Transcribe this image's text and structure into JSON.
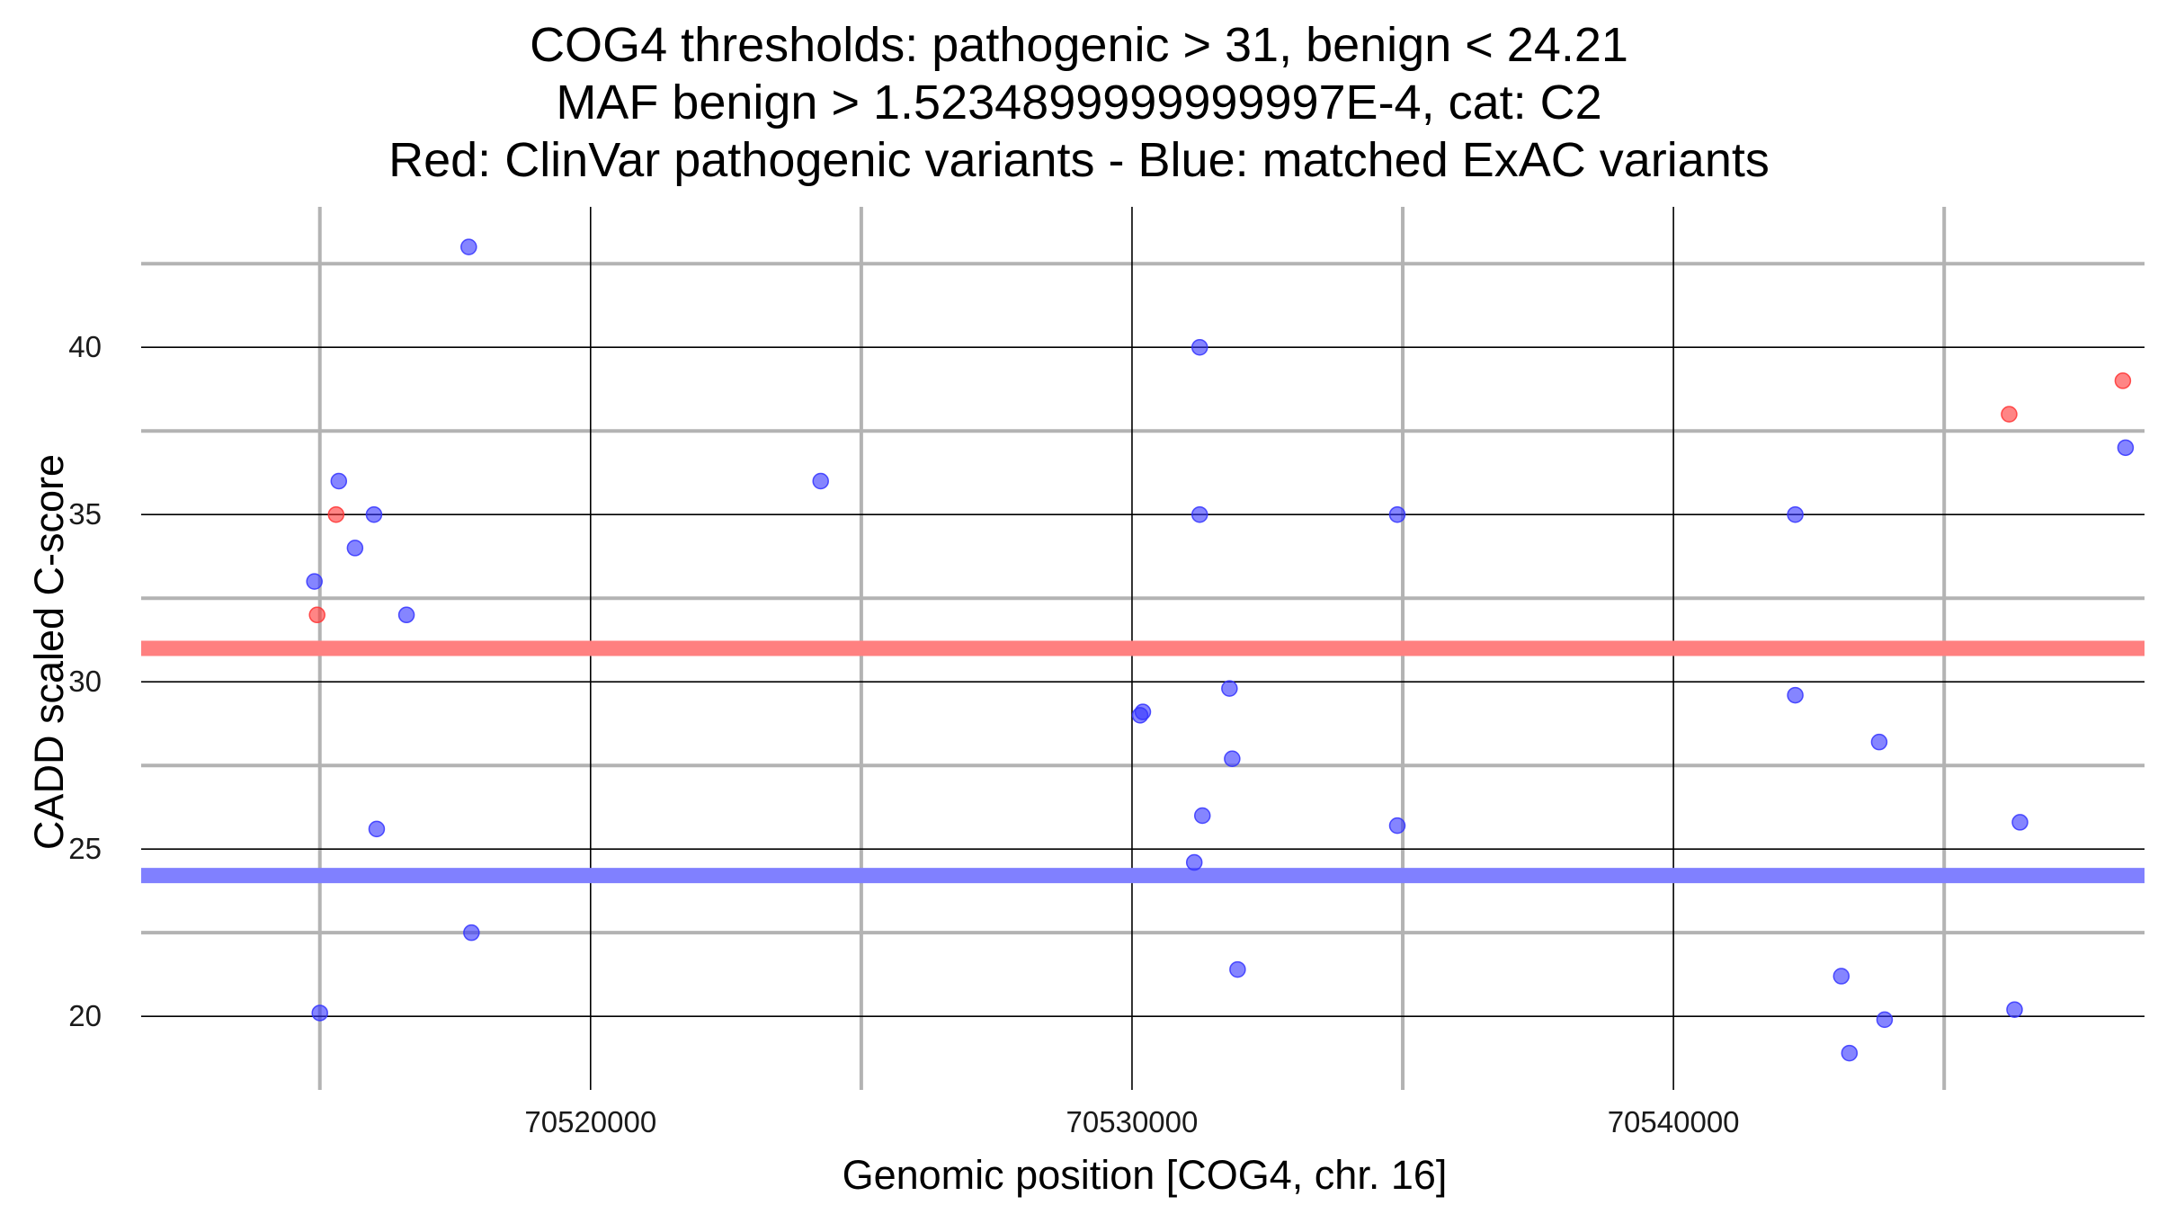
{
  "chart_data": {
    "type": "scatter",
    "title_lines": [
      "COG4 thresholds: pathogenic > 31, benign < 24.21",
      "MAF benign > 1.5234899999999997E-4, cat: C2",
      "Red: ClinVar pathogenic variants - Blue: matched ExAC variants"
    ],
    "xlabel": "Genomic position [COG4, chr. 16]",
    "ylabel": "CADD scaled C-score",
    "xlim": [
      70511700,
      70548700
    ],
    "ylim": [
      17.8,
      44.2
    ],
    "x_ticks": [
      70520000,
      70530000,
      70540000
    ],
    "x_tick_labels": [
      "70520000",
      "70530000",
      "70540000"
    ],
    "x_minor_ticks": [
      70515000,
      70525000,
      70535000,
      70545000
    ],
    "y_ticks": [
      20,
      25,
      30,
      35,
      40
    ],
    "y_tick_labels": [
      "20",
      "25",
      "30",
      "35",
      "40"
    ],
    "y_minor_ticks": [
      22.5,
      27.5,
      32.5,
      37.5,
      42.5
    ],
    "thresholds": [
      {
        "name": "pathogenic",
        "value": 31,
        "color": "#ff8080"
      },
      {
        "name": "benign",
        "value": 24.21,
        "color": "#8080ff"
      }
    ],
    "series": [
      {
        "name": "ClinVar pathogenic variants",
        "color": "#ff3333",
        "points": [
          {
            "x": 70514950,
            "y": 32
          },
          {
            "x": 70515300,
            "y": 35
          },
          {
            "x": 70546200,
            "y": 38
          },
          {
            "x": 70548300,
            "y": 39
          }
        ]
      },
      {
        "name": "matched ExAC variants",
        "color": "#3333ff",
        "points": [
          {
            "x": 70514900,
            "y": 33
          },
          {
            "x": 70515000,
            "y": 20.1
          },
          {
            "x": 70515350,
            "y": 36
          },
          {
            "x": 70515650,
            "y": 34
          },
          {
            "x": 70516000,
            "y": 35
          },
          {
            "x": 70516050,
            "y": 25.6
          },
          {
            "x": 70516600,
            "y": 32
          },
          {
            "x": 70517750,
            "y": 43
          },
          {
            "x": 70517800,
            "y": 22.5
          },
          {
            "x": 70524250,
            "y": 36
          },
          {
            "x": 70530150,
            "y": 29
          },
          {
            "x": 70530200,
            "y": 29.1
          },
          {
            "x": 70531150,
            "y": 24.6
          },
          {
            "x": 70531250,
            "y": 40
          },
          {
            "x": 70531250,
            "y": 35
          },
          {
            "x": 70531300,
            "y": 26
          },
          {
            "x": 70531800,
            "y": 29.8
          },
          {
            "x": 70531850,
            "y": 27.7
          },
          {
            "x": 70531950,
            "y": 21.4
          },
          {
            "x": 70534900,
            "y": 35
          },
          {
            "x": 70534900,
            "y": 25.7
          },
          {
            "x": 70542250,
            "y": 35
          },
          {
            "x": 70542250,
            "y": 29.6
          },
          {
            "x": 70543100,
            "y": 21.2
          },
          {
            "x": 70543250,
            "y": 18.9
          },
          {
            "x": 70543800,
            "y": 28.2
          },
          {
            "x": 70543900,
            "y": 19.9
          },
          {
            "x": 70546300,
            "y": 20.2
          },
          {
            "x": 70546400,
            "y": 25.8
          },
          {
            "x": 70548350,
            "y": 37
          }
        ]
      }
    ]
  }
}
